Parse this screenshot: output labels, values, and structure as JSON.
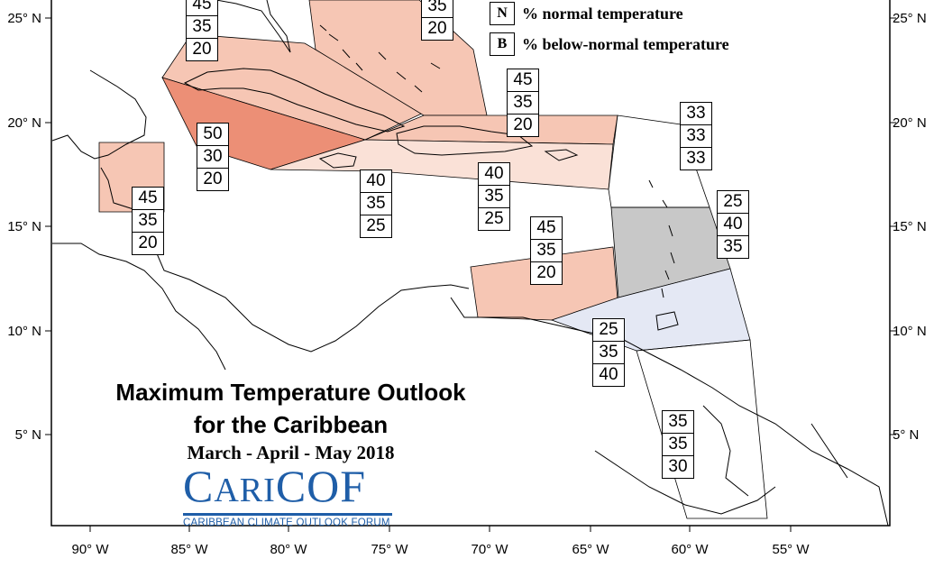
{
  "map": {
    "title_line1": "Maximum Temperature Outlook",
    "title_line2": "for the Caribbean",
    "period": "March - April - May 2018",
    "logo": {
      "text": "CariCOF",
      "tagline": "CARIBBEAN CLIMATE OUTLOOK FORUM"
    },
    "legend": [
      {
        "key": "N",
        "label": "% normal temperature"
      },
      {
        "key": "B",
        "label": "% below-normal temperature"
      }
    ],
    "x_ticks": [
      "90° W",
      "85° W",
      "80° W",
      "75° W",
      "70° W",
      "65° W",
      "60° W",
      "55° W"
    ],
    "y_ticks": [
      "25° N",
      "20° N",
      "15° N",
      "10° N",
      "5° N"
    ],
    "colors": {
      "above_50": "#ec8f76",
      "above_45": "#f6c6b4",
      "above_40": "#fae1d7",
      "normal_40": "#c8c8c8",
      "below_35": "#e4e8f4",
      "border": "#000000"
    },
    "regions": [
      {
        "name": "bahamas-north",
        "values": [
          "45",
          "35",
          "20"
        ]
      },
      {
        "name": "bahamas-east",
        "values": [
          "35",
          "20"
        ]
      },
      {
        "name": "belize",
        "values": [
          "45",
          "35",
          "20"
        ]
      },
      {
        "name": "cuba-west",
        "values": [
          "50",
          "30",
          "20"
        ]
      },
      {
        "name": "jamaica",
        "values": [
          "40",
          "35",
          "25"
        ]
      },
      {
        "name": "hispaniola-north",
        "values": [
          "45",
          "35",
          "20"
        ]
      },
      {
        "name": "hispaniola-south",
        "values": [
          "40",
          "35",
          "25"
        ]
      },
      {
        "name": "northern-leewards",
        "values": [
          "33",
          "33",
          "33"
        ]
      },
      {
        "name": "windward-islands",
        "values": [
          "25",
          "40",
          "35"
        ]
      },
      {
        "name": "abc-islands",
        "values": [
          "45",
          "35",
          "20"
        ]
      },
      {
        "name": "trinidad",
        "values": [
          "25",
          "35",
          "40"
        ]
      },
      {
        "name": "guianas",
        "values": [
          "35",
          "35",
          "30"
        ]
      }
    ]
  }
}
